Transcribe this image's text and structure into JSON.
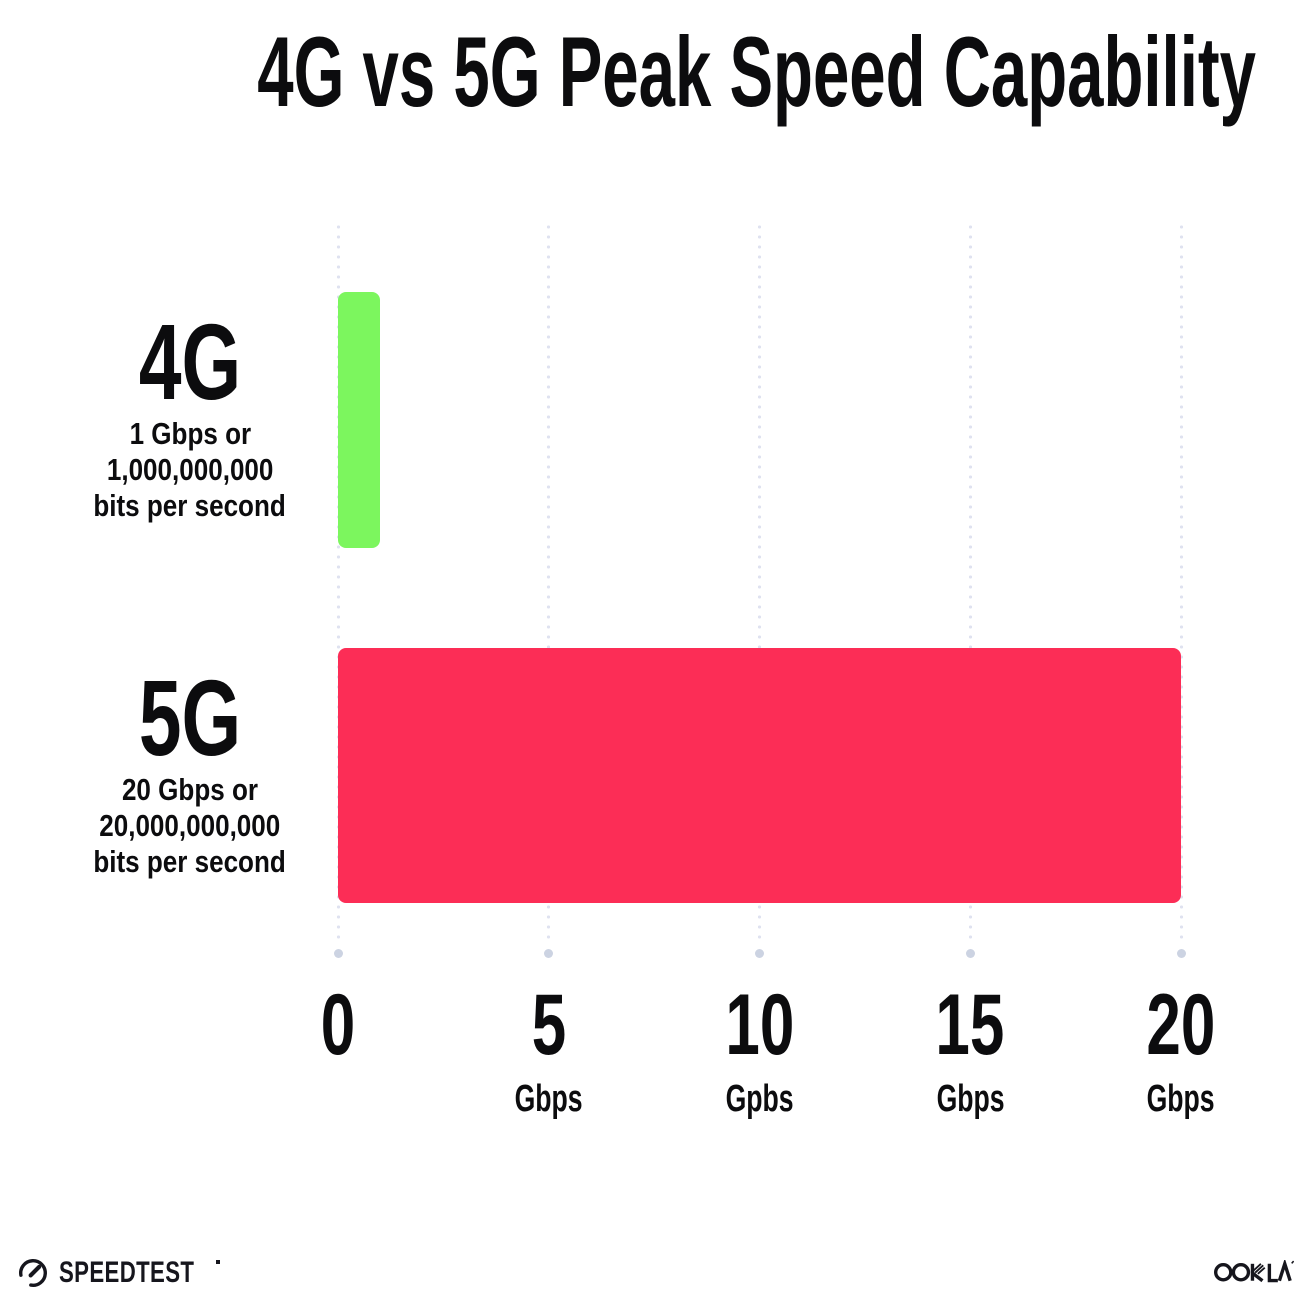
{
  "title": "4G vs 5G Peak Speed Capability",
  "chart_data": {
    "type": "bar",
    "orientation": "horizontal",
    "title": "4G vs 5G Peak Speed Capability",
    "xlim": [
      0,
      20
    ],
    "grid": "dotted vertical gridlines at each tick, terminal dot at bottom",
    "legend": "none",
    "categories": [
      "4G",
      "5G"
    ],
    "values": [
      1,
      20
    ],
    "bars": [
      {
        "label": "4G",
        "value_gbps": 1,
        "color": "#7CF65E",
        "description_lines": [
          "1 Gbps or",
          "1,000,000,000",
          "bits per second"
        ]
      },
      {
        "label": "5G",
        "value_gbps": 20,
        "color": "#FC2D56",
        "description_lines": [
          "20 Gbps or",
          "20,000,000,000",
          "bits per second"
        ]
      }
    ],
    "x_ticks": [
      {
        "value": 0,
        "number": "0",
        "unit": ""
      },
      {
        "value": 5,
        "number": "5",
        "unit": "Gbps"
      },
      {
        "value": 10,
        "number": "10",
        "unit": "Gpbs"
      },
      {
        "value": 15,
        "number": "15",
        "unit": "Gbps"
      },
      {
        "value": 20,
        "number": "20",
        "unit": "Gbps"
      }
    ]
  },
  "footer": {
    "speedtest_label": "SPEEDTEST",
    "ookla_label": "OOKLA"
  },
  "colors": {
    "bar_4g": "#7CF65E",
    "bar_5g": "#FC2D56",
    "text": "#0C0C0E",
    "grid_dot_small": "#DFE2F0",
    "grid_dot_end": "#CCD3E2",
    "background": "#FFFFFF"
  }
}
